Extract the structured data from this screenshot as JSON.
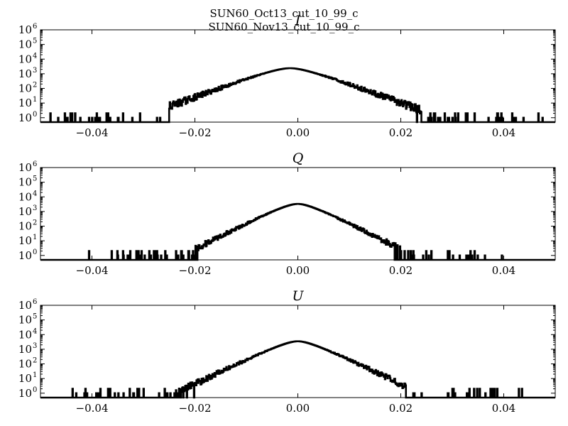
{
  "figure": {
    "suptitle_lines": [
      "SUN60_Oct13_cut_10_99_c",
      "SUN60_Nov13_cut_10_99_c"
    ]
  },
  "chart_data": [
    {
      "type": "histogram",
      "title": "I",
      "xlabel": "",
      "ylabel": "",
      "xlim": [
        -0.05,
        0.05
      ],
      "ylim": [
        0.5,
        1000000
      ],
      "yscale": "log",
      "xticks": [
        -0.04,
        -0.02,
        0.0,
        0.02,
        0.04
      ],
      "xtick_labels": [
        "−0.04",
        "−0.02",
        "0.00",
        "0.02",
        "0.04"
      ],
      "yticks": [
        1,
        10,
        100,
        1000,
        10000,
        100000,
        1000000
      ],
      "ytick_base": "10",
      "ytick_exponents": [
        "0",
        "1",
        "2",
        "3",
        "4",
        "5",
        "6"
      ],
      "grid": false,
      "peak": {
        "x": -0.0015,
        "y": 2400
      },
      "shape": {
        "width": 0.0075,
        "core": 0.0045,
        "dense_range": [
          -0.025,
          0.024
        ]
      },
      "sparse_range": [
        -0.049,
        0.049
      ],
      "color": "#000000"
    },
    {
      "type": "histogram",
      "title": "Q",
      "xlabel": "",
      "ylabel": "",
      "xlim": [
        -0.05,
        0.05
      ],
      "ylim": [
        0.5,
        1000000
      ],
      "yscale": "log",
      "xticks": [
        -0.04,
        -0.02,
        0.0,
        0.02,
        0.04
      ],
      "xtick_labels": [
        "−0.04",
        "−0.02",
        "0.00",
        "0.02",
        "0.04"
      ],
      "yticks": [
        1,
        10,
        100,
        1000,
        10000,
        100000,
        1000000
      ],
      "ytick_base": "10",
      "ytick_exponents": [
        "0",
        "1",
        "2",
        "3",
        "4",
        "5",
        "6"
      ],
      "grid": false,
      "peak": {
        "x": 0.0,
        "y": 3300
      },
      "shape": {
        "width": 0.0055,
        "core": 0.0035,
        "dense_range": [
          -0.02,
          0.02
        ]
      },
      "sparse_range": [
        -0.043,
        0.041
      ],
      "color": "#000000"
    },
    {
      "type": "histogram",
      "title": "U",
      "xlabel": "",
      "ylabel": "",
      "xlim": [
        -0.05,
        0.05
      ],
      "ylim": [
        0.5,
        1000000
      ],
      "yscale": "log",
      "xticks": [
        -0.04,
        -0.02,
        0.0,
        0.02,
        0.04
      ],
      "xtick_labels": [
        "−0.04",
        "−0.02",
        "0.00",
        "0.02",
        "0.04"
      ],
      "yticks": [
        1,
        10,
        100,
        1000,
        10000,
        100000,
        1000000
      ],
      "ytick_base": "10",
      "ytick_exponents": [
        "0",
        "1",
        "2",
        "3",
        "4",
        "5",
        "6"
      ],
      "grid": false,
      "peak": {
        "x": 0.0,
        "y": 3500
      },
      "shape": {
        "width": 0.0058,
        "core": 0.0036,
        "dense_range": [
          -0.024,
          0.021
        ]
      },
      "sparse_range": [
        -0.045,
        0.044
      ],
      "color": "#000000"
    }
  ]
}
